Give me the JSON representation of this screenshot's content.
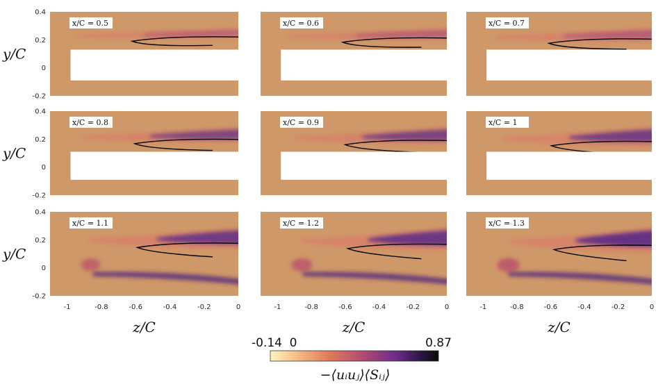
{
  "chart_data": {
    "type": "heatmap",
    "description_units": "contour fields of the shear production term",
    "panels": [
      {
        "label": "x/C = 0.5",
        "x_over_c": 0.5,
        "body": "plate"
      },
      {
        "label": "x/C = 0.6",
        "x_over_c": 0.6,
        "body": "plate"
      },
      {
        "label": "x/C = 0.7",
        "x_over_c": 0.7,
        "body": "plate"
      },
      {
        "label": "x/C = 0.8",
        "x_over_c": 0.8,
        "body": "plate"
      },
      {
        "label": "x/C = 0.9",
        "x_over_c": 0.9,
        "body": "plate"
      },
      {
        "label": "x/C = 1",
        "x_over_c": 1.0,
        "body": "plate"
      },
      {
        "label": "x/C = 1.1",
        "x_over_c": 1.1,
        "body": "none"
      },
      {
        "label": "x/C = 1.2",
        "x_over_c": 1.2,
        "body": "none"
      },
      {
        "label": "x/C = 1.3",
        "x_over_c": 1.3,
        "body": "none"
      }
    ],
    "xlabel": "z/C",
    "ylabel": "y/C",
    "xlim": [
      -1.1,
      0
    ],
    "ylim": [
      -0.2,
      0.4
    ],
    "xticks": [
      "-1",
      "-0.8",
      "-0.6",
      "-0.4",
      "-0.2",
      "0"
    ],
    "yticks": [
      "0.4",
      "0.2",
      "0",
      "-0.2"
    ],
    "colorbar": {
      "min_label": "-0.14",
      "zero_label": "0",
      "max_label": "0.87",
      "min": -0.14,
      "max": 0.87,
      "label": "−⟨uᵢuⱼ⟩⟨Sᵢⱼ⟩",
      "colors": [
        "#fff4c2",
        "#f2a070",
        "#d85a58",
        "#a43c78",
        "#5e2a8a",
        "#141018"
      ]
    },
    "background_color": "#cf9868"
  }
}
